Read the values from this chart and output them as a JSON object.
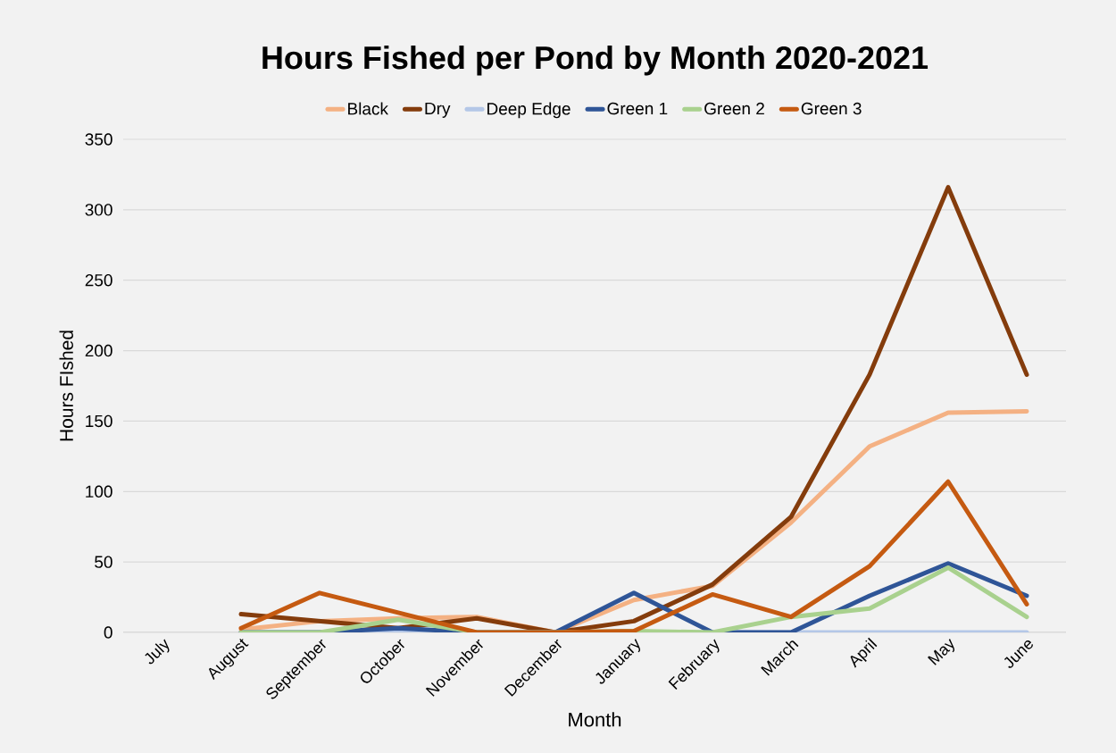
{
  "chart_data": {
    "type": "line",
    "title": "Hours Fished per Pond by Month 2020-2021",
    "xlabel": "Month",
    "ylabel": "Hours FIshed",
    "categories": [
      "July",
      "August",
      "September",
      "October",
      "November",
      "December",
      "January",
      "February",
      "March",
      "April",
      "May",
      "June"
    ],
    "series": [
      {
        "name": "Black",
        "color": "#f4b183",
        "values": [
          null,
          2,
          8,
          10,
          11,
          0,
          23,
          33,
          78,
          132,
          156,
          157
        ]
      },
      {
        "name": "Dry",
        "color": "#843c0c",
        "values": [
          null,
          13,
          8,
          3,
          10,
          0,
          8,
          34,
          82,
          183,
          316,
          183
        ]
      },
      {
        "name": "Deep Edge",
        "color": "#b4c7e7",
        "values": [
          null,
          0,
          0,
          0,
          0,
          0,
          0,
          0,
          0,
          0,
          0,
          0
        ]
      },
      {
        "name": "Green 1",
        "color": "#2f5597",
        "values": [
          null,
          0,
          0,
          3,
          0,
          0,
          28,
          0,
          0,
          26,
          49,
          26
        ]
      },
      {
        "name": "Green 2",
        "color": "#a9d18e",
        "values": [
          null,
          0,
          0,
          9,
          0,
          0,
          1,
          0,
          11,
          17,
          46,
          11
        ]
      },
      {
        "name": "Green 3",
        "color": "#c55a11",
        "values": [
          null,
          3,
          28,
          14,
          0,
          0,
          1,
          27,
          11,
          47,
          107,
          20
        ]
      }
    ],
    "ylim": [
      0,
      350
    ],
    "yticks": [
      0,
      50,
      100,
      150,
      200,
      250,
      300,
      350
    ],
    "grid": "y",
    "legend": "top",
    "marker": "none",
    "line_style": "solid"
  }
}
